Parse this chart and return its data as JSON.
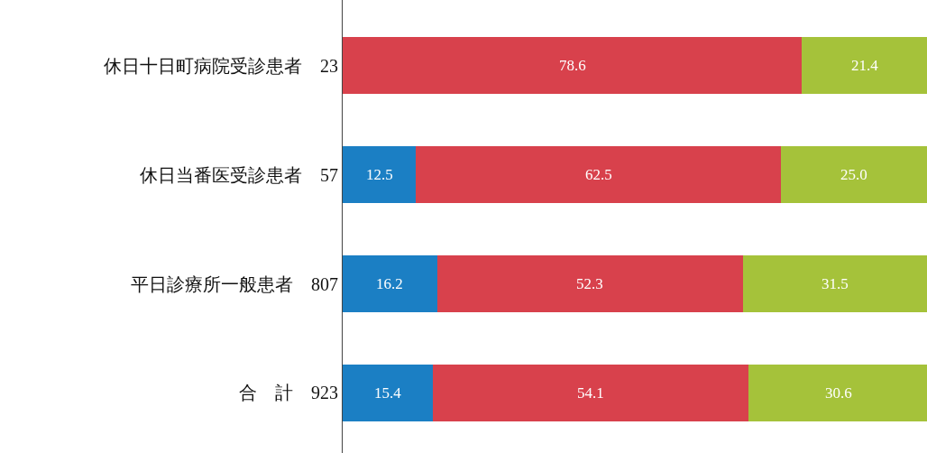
{
  "chart_data": {
    "type": "bar",
    "orientation": "horizontal",
    "stacked": true,
    "tick_labels": "y",
    "grid": false,
    "categories": [
      "休日十日町病院受診患者　23",
      "休日当番医受診患者　57",
      "平日診療所一般患者　807",
      "合　計　923"
    ],
    "xlim": [
      0,
      100
    ],
    "series": [
      {
        "color": "#1b7fc4",
        "values": [
          null,
          12.5,
          16.2,
          15.4
        ],
        "value_labels": [
          null,
          "12.5",
          "16.2",
          "15.4"
        ]
      },
      {
        "color": "#d8414c",
        "values": [
          78.6,
          62.5,
          52.3,
          54.1
        ],
        "value_labels": [
          "78.6",
          "62.5",
          "52.3",
          "54.1"
        ]
      },
      {
        "color": "#a5c23a",
        "values": [
          21.4,
          25.0,
          31.5,
          30.6
        ],
        "value_labels": [
          "21.4",
          "25.0",
          "31.5",
          "30.6"
        ]
      }
    ]
  }
}
